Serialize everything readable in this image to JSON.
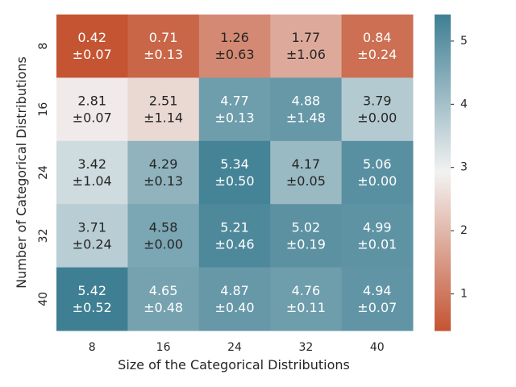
{
  "chart_data": {
    "type": "heatmap",
    "title": "",
    "xlabel": "Size of the Categorical Distributions",
    "ylabel": "Number of Categorical Distributions",
    "x_categories": [
      "8",
      "16",
      "24",
      "32",
      "40"
    ],
    "y_categories": [
      "8",
      "16",
      "24",
      "32",
      "40"
    ],
    "values": [
      [
        0.42,
        0.71,
        1.26,
        1.77,
        0.84
      ],
      [
        2.81,
        2.51,
        4.77,
        4.88,
        3.79
      ],
      [
        3.42,
        4.29,
        5.34,
        4.17,
        5.06
      ],
      [
        3.71,
        4.58,
        5.21,
        5.02,
        4.99
      ],
      [
        5.42,
        4.65,
        4.87,
        4.76,
        4.94
      ]
    ],
    "errors": [
      [
        0.07,
        0.13,
        0.63,
        1.06,
        0.24
      ],
      [
        0.07,
        1.14,
        0.13,
        1.48,
        0.0
      ],
      [
        1.04,
        0.13,
        0.5,
        0.05,
        0.0
      ],
      [
        0.24,
        0.0,
        0.46,
        0.19,
        0.01
      ],
      [
        0.52,
        0.48,
        0.4,
        0.11,
        0.07
      ]
    ],
    "color_range": [
      0.42,
      5.42
    ],
    "colormap": {
      "low": "#c45432",
      "mid": "#f2f2f2",
      "high": "#3f7f93"
    },
    "colorbar_ticks": [
      1,
      2,
      3,
      4,
      5
    ],
    "grid": false,
    "legend": "colorbar-right"
  }
}
